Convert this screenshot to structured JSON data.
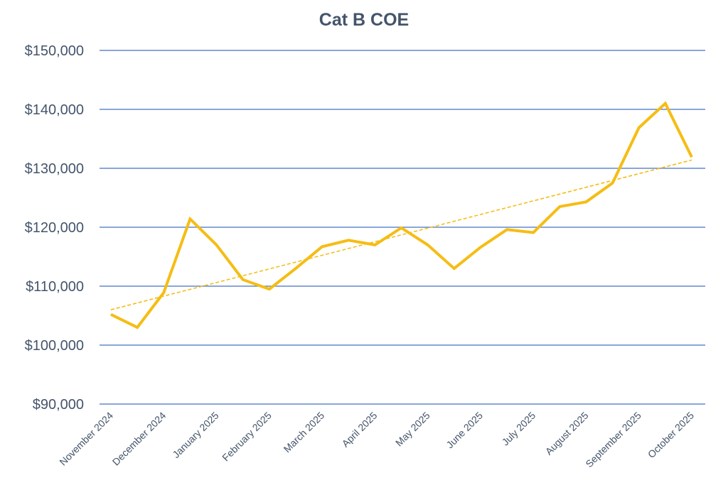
{
  "chart_data": {
    "type": "line",
    "title": "Cat B COE",
    "xlabel": "",
    "ylabel": "",
    "ylim": [
      90000,
      150000
    ],
    "yticks": [
      90000,
      100000,
      110000,
      120000,
      130000,
      140000,
      150000
    ],
    "ytick_labels": [
      "$90,000",
      "$100,000",
      "$110,000",
      "$120,000",
      "$130,000",
      "$140,000",
      "$150,000"
    ],
    "grid": true,
    "x_tick_labels": [
      {
        "index": 0,
        "label": "November 2024"
      },
      {
        "index": 2,
        "label": "December 2024"
      },
      {
        "index": 4,
        "label": "January 2025"
      },
      {
        "index": 6,
        "label": "February 2025"
      },
      {
        "index": 8,
        "label": "March 2025"
      },
      {
        "index": 10,
        "label": "April 2025"
      },
      {
        "index": 12,
        "label": "May 2025"
      },
      {
        "index": 14,
        "label": "June 2025"
      },
      {
        "index": 16,
        "label": "July 2025"
      },
      {
        "index": 18,
        "label": "August 2025"
      },
      {
        "index": 20,
        "label": "September 2025"
      },
      {
        "index": 22,
        "label": "October 2025"
      }
    ],
    "series": [
      {
        "name": "Cat B COE",
        "color": "#f5bd14",
        "values": [
          105200,
          103000,
          108900,
          121400,
          117000,
          111100,
          109500,
          113000,
          116700,
          117800,
          117000,
          119900,
          117000,
          113000,
          116600,
          119600,
          119100,
          123500,
          124300,
          127500,
          136900,
          141000,
          131900
        ]
      }
    ],
    "trendline": {
      "type": "linear",
      "color": "#f5bd14",
      "start": 106000,
      "end": 131400
    }
  }
}
